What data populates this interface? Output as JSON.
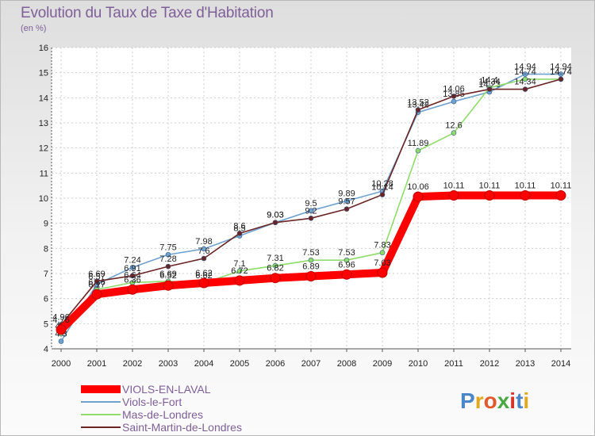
{
  "header": {
    "title": "Evolution du Taux de Taxe d'Habitation",
    "unit": "(en %)"
  },
  "logo": {
    "text": "Proxiti",
    "letters": [
      "P",
      "r",
      "o",
      "x",
      "i",
      "t",
      "i"
    ],
    "colors": [
      "#4a86c8",
      "#e3a81b",
      "#e05a2a",
      "#4aa843",
      "#d8322a",
      "#4a86c8",
      "#e3a81b"
    ]
  },
  "chart_data": {
    "type": "line",
    "title": "Evolution du Taux de Taxe d'Habitation",
    "ylabel": "(en %)",
    "xlabel": "",
    "x": [
      2000,
      2001,
      2002,
      2003,
      2004,
      2005,
      2006,
      2007,
      2008,
      2009,
      2010,
      2011,
      2012,
      2013,
      2014
    ],
    "ylim": [
      4,
      16
    ],
    "yticks": [
      4,
      5,
      6,
      7,
      8,
      9,
      10,
      11,
      12,
      13,
      14,
      15,
      16
    ],
    "grid": true,
    "legend_position": "bottom-left",
    "series": [
      {
        "name": "Viols-le-Fort",
        "color": "#6fa2cf",
        "values": [
          4.3,
          6.57,
          7.24,
          7.75,
          7.98,
          8.5,
          9.03,
          9.5,
          9.89,
          10.28,
          13.42,
          13.85,
          14.23,
          14.94,
          14.94
        ],
        "labels": [
          "4.3",
          "6.57",
          "7.24",
          "7.75",
          "7.98",
          "8.5",
          "9.03",
          "9.5",
          "9.89",
          "10.28",
          "13.42",
          "13.85",
          "14.23",
          "14.94",
          "14.94"
        ]
      },
      {
        "name": "Mas-de-Londres",
        "color": "#8fdc6b",
        "values": [
          4.6,
          6.36,
          6.64,
          6.69,
          6.62,
          7.1,
          7.31,
          7.53,
          7.53,
          7.83,
          11.89,
          12.6,
          14.4,
          14.74,
          14.74
        ],
        "labels": [
          "4.6",
          "6.36",
          "6.64",
          "6.69",
          "6.62",
          "7.1",
          "7.31",
          "7.53",
          "7.53",
          "7.83",
          "11.89",
          "12.6",
          "14.4",
          "14.74",
          "14.74"
        ]
      },
      {
        "name": "Saint-Martin-de-Londres",
        "color": "#6b2424",
        "values": [
          4.96,
          6.69,
          6.91,
          7.28,
          7.6,
          8.6,
          9.03,
          9.2,
          9.57,
          10.14,
          13.52,
          14.06,
          14.34,
          14.34,
          14.74
        ],
        "labels": [
          "4.96",
          "6.69",
          "6.91",
          "7.28",
          "7.6",
          "8.6",
          "9.03",
          "9.2",
          "9.57",
          "10.14",
          "13.52",
          "14.06",
          "14.34",
          "14.34",
          "14.74"
        ]
      },
      {
        "name": "VIOLS-EN-LAVAL",
        "color": "#ff0000",
        "values": [
          4.76,
          6.17,
          6.36,
          6.52,
          6.62,
          6.72,
          6.82,
          6.89,
          6.96,
          7.03,
          10.06,
          10.11,
          10.11,
          10.11,
          10.11
        ],
        "labels": [
          "4.76",
          "6.17",
          "6.36",
          "6.52",
          "6.62",
          "6.72",
          "6.82",
          "6.89",
          "6.96",
          "7.03",
          "10.06",
          "10.11",
          "10.11",
          "10.11",
          "10.11"
        ]
      }
    ],
    "legend": [
      {
        "name": "VIOLS-EN-LAVAL",
        "color": "#ff0000"
      },
      {
        "name": "Viols-le-Fort",
        "color": "#6fa2cf"
      },
      {
        "name": "Mas-de-Londres",
        "color": "#8fdc6b"
      },
      {
        "name": "Saint-Martin-de-Londres",
        "color": "#6b2424"
      }
    ]
  }
}
